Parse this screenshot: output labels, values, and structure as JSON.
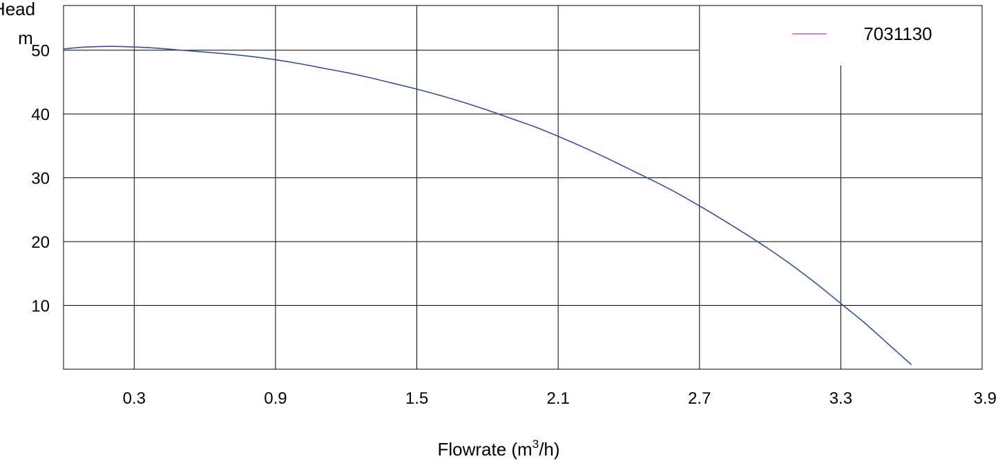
{
  "chart_data": {
    "type": "line",
    "title": "",
    "xlabel": "Flowrate (m3/h)",
    "xlabel_parts": {
      "prefix": "Flowrate (m",
      "sup": "3",
      "suffix": "/h)"
    },
    "ylabel_lines": [
      "Head",
      "m"
    ],
    "xlim": [
      0,
      3.9
    ],
    "ylim": [
      0,
      57
    ],
    "x_ticks": [
      0.3,
      0.9,
      1.5,
      2.1,
      2.7,
      3.3,
      3.9
    ],
    "x_tick_labels": [
      "0.3",
      "0.9",
      "1.5",
      "2.1",
      "2.7",
      "3.3",
      "3.9"
    ],
    "y_ticks": [
      10,
      20,
      30,
      40,
      50
    ],
    "y_tick_labels": [
      "10",
      "20",
      "30",
      "40",
      "50"
    ],
    "grid": true,
    "legend": {
      "placement": "top-right",
      "entry_label": "7031130",
      "swatch_color": "#cc33cc"
    },
    "series": [
      {
        "name": "7031130",
        "color": "#2f4fa8",
        "x": [
          0,
          0.1,
          0.2,
          0.3,
          0.4,
          0.5,
          0.6,
          0.7,
          0.8,
          0.9,
          1.0,
          1.1,
          1.2,
          1.3,
          1.4,
          1.5,
          1.6,
          1.7,
          1.8,
          1.9,
          2.0,
          2.1,
          2.2,
          2.3,
          2.4,
          2.5,
          2.6,
          2.7,
          2.8,
          2.9,
          3.0,
          3.1,
          3.2,
          3.3,
          3.4,
          3.5,
          3.6
        ],
        "y": [
          50.2,
          50.5,
          50.6,
          50.5,
          50.3,
          50.0,
          49.7,
          49.4,
          49.0,
          48.5,
          47.9,
          47.2,
          46.5,
          45.7,
          44.8,
          43.9,
          42.9,
          41.8,
          40.6,
          39.3,
          38.0,
          36.5,
          34.9,
          33.2,
          31.4,
          29.6,
          27.7,
          25.6,
          23.4,
          21.1,
          18.7,
          16.1,
          13.3,
          10.3,
          7.3,
          4.0,
          0.7
        ]
      }
    ]
  }
}
